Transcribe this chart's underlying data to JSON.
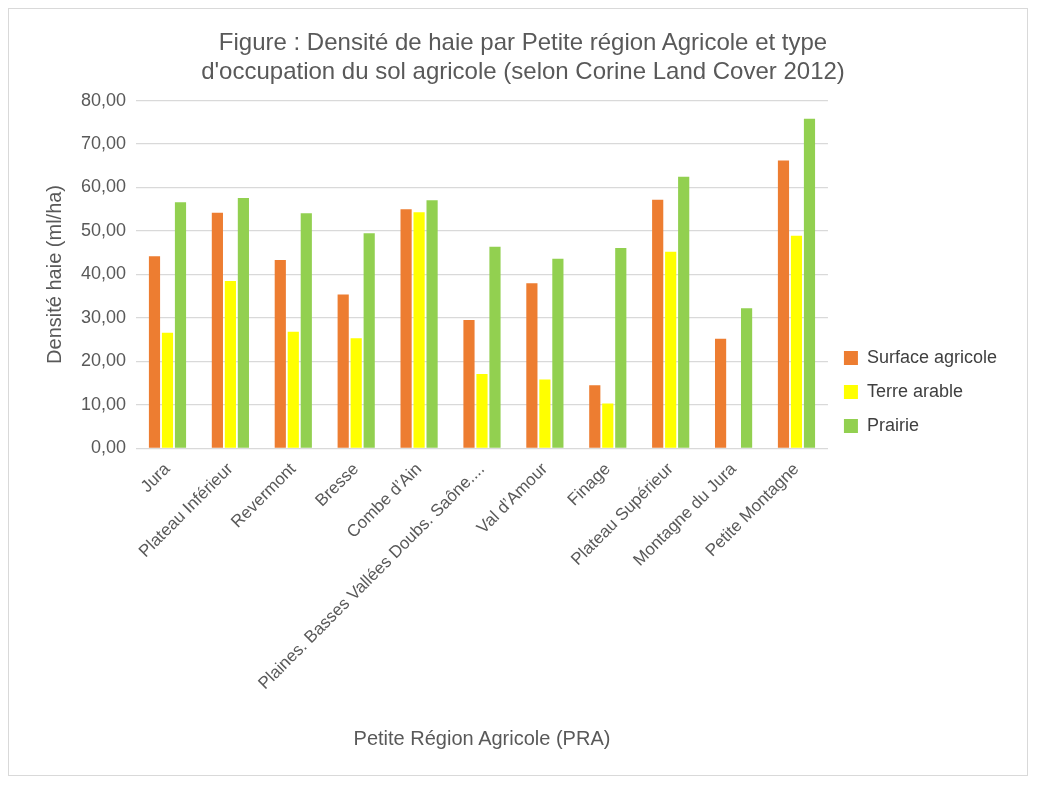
{
  "chart_data": {
    "type": "bar",
    "title": [
      "Figure : Densité de haie par Petite région Agricole et type",
      "d'occupation du sol agricole (selon Corine Land Cover 2012)"
    ],
    "xlabel": "Petite Région Agricole (PRA)",
    "ylabel": "Densité haie (ml/ha)",
    "categories": [
      "Jura",
      "Plateau Inférieur",
      "Revermont",
      "Bresse",
      "Combe d’Ain",
      "Plaines. Basses Vallées Doubs. Saône....",
      "Val d’Amour",
      "Finage",
      "Plateau Supérieur",
      "Montagne du Jura",
      "Petite Montagne"
    ],
    "series": [
      {
        "name": "Surface agricole",
        "color": "#ed7d31",
        "values": [
          44.2,
          54.2,
          43.3,
          35.4,
          55.0,
          29.5,
          38.0,
          14.5,
          57.2,
          25.2,
          66.2
        ]
      },
      {
        "name": "Terre arable",
        "color": "#ffff00",
        "values": [
          26.6,
          38.5,
          26.8,
          25.3,
          54.3,
          17.1,
          15.8,
          10.3,
          45.2,
          null,
          48.9
        ]
      },
      {
        "name": "Prairie",
        "color": "#92d050",
        "values": [
          56.6,
          57.6,
          54.1,
          49.5,
          57.1,
          46.4,
          43.6,
          46.1,
          62.5,
          32.2,
          75.8
        ]
      }
    ],
    "ylim": [
      0,
      80
    ],
    "yticks": [
      {
        "value": 0,
        "label": "0,00"
      },
      {
        "value": 10,
        "label": "10,00"
      },
      {
        "value": 20,
        "label": "20,00"
      },
      {
        "value": 30,
        "label": "30,00"
      },
      {
        "value": 40,
        "label": "40,00"
      },
      {
        "value": 50,
        "label": "50,00"
      },
      {
        "value": 60,
        "label": "60,00"
      },
      {
        "value": 70,
        "label": "70,00"
      },
      {
        "value": 80,
        "label": "80,00"
      }
    ],
    "grid": "y",
    "legend": "right"
  }
}
